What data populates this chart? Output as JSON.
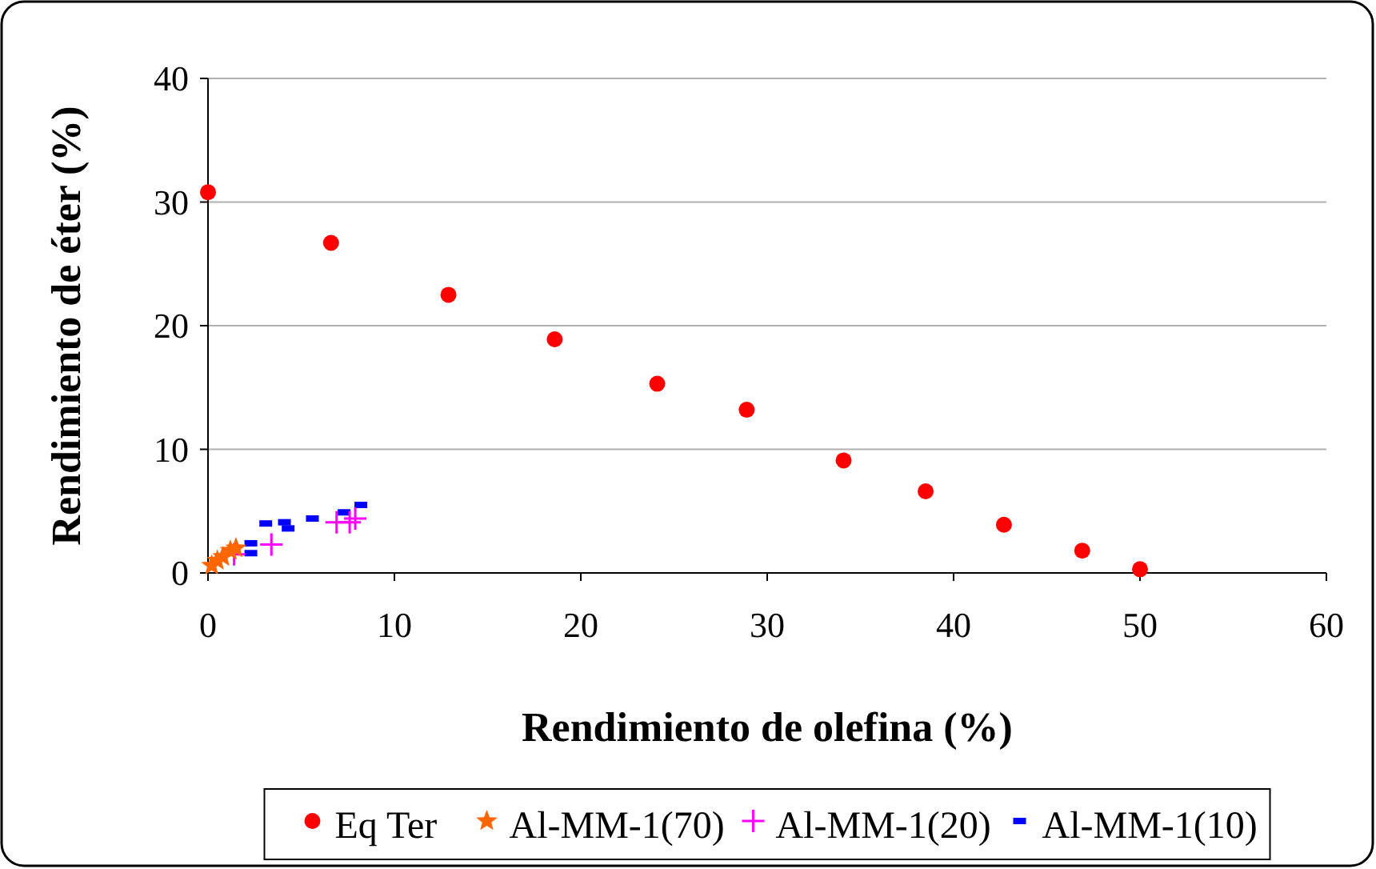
{
  "chart_data": {
    "type": "scatter",
    "xlabel": "Rendimiento de olefina (%)",
    "ylabel": "Rendimiento de éter (%)",
    "xlim": [
      0,
      60
    ],
    "xticks": [
      0,
      10,
      20,
      30,
      40,
      50,
      60
    ],
    "ylim": [
      0,
      40
    ],
    "yticks": [
      0,
      10,
      20,
      30,
      40
    ],
    "grid": "y",
    "legend": "bottom",
    "series": [
      {
        "name": "Eq Ter",
        "color": "#ff0000",
        "marker": "circle",
        "x": [
          0,
          6.6,
          12.9,
          18.6,
          24.1,
          28.9,
          34.1,
          38.5,
          42.7,
          46.9,
          50
        ],
        "values": [
          30.8,
          26.7,
          22.5,
          18.9,
          15.3,
          13.2,
          9.1,
          6.6,
          3.9,
          1.8,
          0.3
        ]
      },
      {
        "name": "Al-MM-1(70)",
        "color": "#ff6600",
        "marker": "star",
        "x": [
          0.2,
          0.5,
          0.8,
          1.2,
          1.5
        ],
        "values": [
          0.6,
          1.0,
          1.3,
          1.8,
          2.0
        ]
      },
      {
        "name": "Al-MM-1(20)",
        "color": "#ff00ff",
        "marker": "cross",
        "x": [
          1.4,
          3.4,
          6.9,
          7.6,
          7.9
        ],
        "values": [
          1.5,
          2.3,
          4.1,
          4.1,
          4.4
        ]
      },
      {
        "name": "Al-MM-1(10)",
        "color": "#0000ff",
        "marker": "square",
        "x": [
          2.3,
          2.3,
          3.1,
          4.1,
          4.3,
          5.6,
          7.3,
          8.2
        ],
        "values": [
          1.6,
          2.4,
          4.0,
          4.1,
          3.6,
          4.4,
          4.9,
          5.5
        ]
      }
    ]
  }
}
